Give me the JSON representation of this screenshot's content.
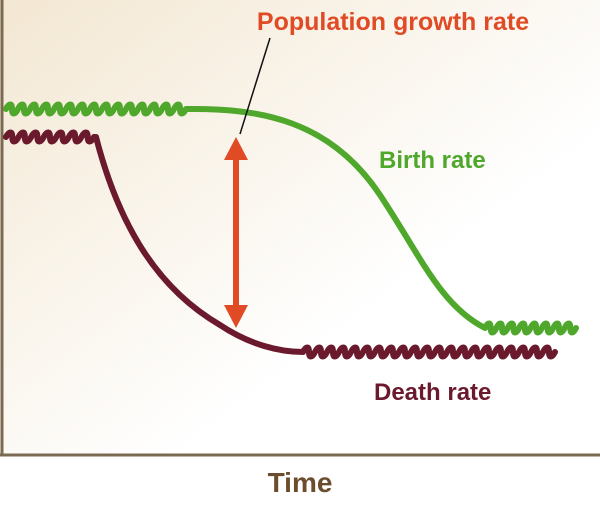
{
  "chart_data": {
    "type": "line",
    "title": "",
    "xlabel": "Time",
    "ylabel": "",
    "grid": false,
    "annotation": {
      "label": "Population growth rate",
      "color": "#e04a24",
      "description": "Double-headed arrow between birth rate and death rate curves"
    },
    "series": [
      {
        "name": "Birth rate",
        "color": "#4fa82c",
        "pattern": "flat (fluctuating), then gradual S-shaped decline, then flat (fluctuating) at low level"
      },
      {
        "name": "Death rate",
        "color": "#6b1a2d",
        "pattern": "flat (fluctuating), then sharp early decline, then flat (fluctuating) at low level"
      }
    ]
  },
  "colors": {
    "background_left": "#f3e7d2",
    "background_right": "#ffffff",
    "axis": "#7a6a52",
    "axis_label": "#6b4d2d"
  }
}
